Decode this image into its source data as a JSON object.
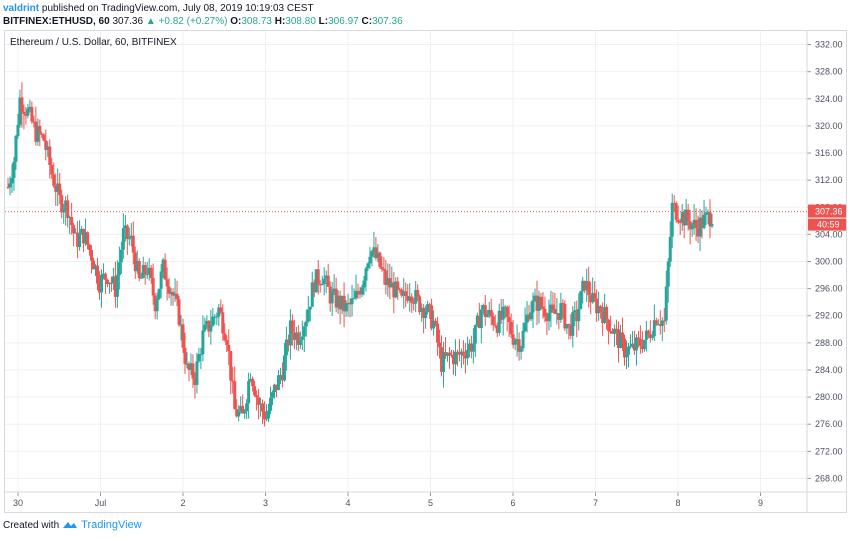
{
  "header": {
    "user": "valdrint",
    "published": "published on TradingView.com, July 08, 2019 10:19:03 CEST",
    "symbol": "BITFINEX:ETHUSD, 60",
    "last": "307.36",
    "change": "+0.82 (+0.27%)",
    "o_label": "O:",
    "o": "308.73",
    "h_label": "H:",
    "h": "308.80",
    "l_label": "L:",
    "l": "306.97",
    "c_label": "C:",
    "c": "307.36"
  },
  "chart_title": "Ethereum / U.S. Dollar, 60, BITFINEX",
  "footer": {
    "created_with": "Created with",
    "brand": "TradingView"
  },
  "colors": {
    "up": "#26a69a",
    "down": "#ef5350",
    "grid": "#eef0f3",
    "price_line": "#ef5350"
  },
  "chart_data": {
    "type": "candlestick",
    "title": "Ethereum / U.S. Dollar, 60, BITFINEX",
    "ylim": [
      266,
      334
    ],
    "y_ticks": [
      "332.00",
      "328.00",
      "324.00",
      "320.00",
      "316.00",
      "312.00",
      "308.00",
      "304.00",
      "300.00",
      "296.00",
      "292.00",
      "288.00",
      "284.00",
      "280.00",
      "276.00",
      "272.00",
      "268.00"
    ],
    "x_ticks": [
      "30",
      "Jul",
      "2",
      "3",
      "4",
      "5",
      "6",
      "7",
      "8",
      "9"
    ],
    "current_price": 307.36,
    "current_price_label": "307.36",
    "countdown_label": "40:59",
    "grid": true,
    "price_anchors": [
      [
        0,
        311
      ],
      [
        3,
        315
      ],
      [
        6,
        324
      ],
      [
        10,
        322
      ],
      [
        14,
        319
      ],
      [
        18,
        318
      ],
      [
        22,
        313
      ],
      [
        26,
        309
      ],
      [
        30,
        308
      ],
      [
        34,
        303
      ],
      [
        38,
        304
      ],
      [
        42,
        301
      ],
      [
        46,
        297
      ],
      [
        50,
        298
      ],
      [
        54,
        296
      ],
      [
        58,
        304
      ],
      [
        62,
        303
      ],
      [
        66,
        297
      ],
      [
        70,
        299
      ],
      [
        74,
        294
      ],
      [
        78,
        299
      ],
      [
        82,
        296
      ],
      [
        86,
        292
      ],
      [
        90,
        284
      ],
      [
        94,
        283
      ],
      [
        98,
        289
      ],
      [
        102,
        291
      ],
      [
        106,
        293
      ],
      [
        110,
        289
      ],
      [
        114,
        278
      ],
      [
        118,
        277
      ],
      [
        122,
        284
      ],
      [
        126,
        279
      ],
      [
        130,
        277
      ],
      [
        134,
        281
      ],
      [
        138,
        284
      ],
      [
        142,
        290
      ],
      [
        146,
        289
      ],
      [
        150,
        292
      ],
      [
        154,
        297
      ],
      [
        158,
        298
      ],
      [
        162,
        295
      ],
      [
        166,
        294
      ],
      [
        170,
        293
      ],
      [
        174,
        294
      ],
      [
        178,
        297
      ],
      [
        182,
        302
      ],
      [
        186,
        300
      ],
      [
        190,
        297
      ],
      [
        194,
        296
      ],
      [
        198,
        294
      ],
      [
        202,
        296
      ],
      [
        206,
        294
      ],
      [
        210,
        293
      ],
      [
        214,
        291
      ],
      [
        218,
        285
      ],
      [
        222,
        286
      ],
      [
        226,
        286
      ],
      [
        230,
        287
      ],
      [
        234,
        288
      ],
      [
        238,
        293
      ],
      [
        242,
        292
      ],
      [
        246,
        291
      ],
      [
        250,
        292
      ],
      [
        254,
        289
      ],
      [
        258,
        288
      ],
      [
        262,
        293
      ],
      [
        266,
        294
      ],
      [
        270,
        293
      ],
      [
        274,
        292
      ],
      [
        278,
        293
      ],
      [
        282,
        290
      ],
      [
        286,
        292
      ],
      [
        290,
        297
      ],
      [
        294,
        294
      ],
      [
        298,
        293
      ],
      [
        302,
        291
      ],
      [
        306,
        289
      ],
      [
        310,
        287
      ],
      [
        314,
        287
      ],
      [
        318,
        288
      ],
      [
        322,
        289
      ],
      [
        326,
        292
      ],
      [
        330,
        291
      ],
      [
        334,
        308
      ],
      [
        338,
        307
      ],
      [
        342,
        306
      ],
      [
        346,
        305
      ],
      [
        350,
        306
      ],
      [
        354,
        307
      ]
    ]
  }
}
